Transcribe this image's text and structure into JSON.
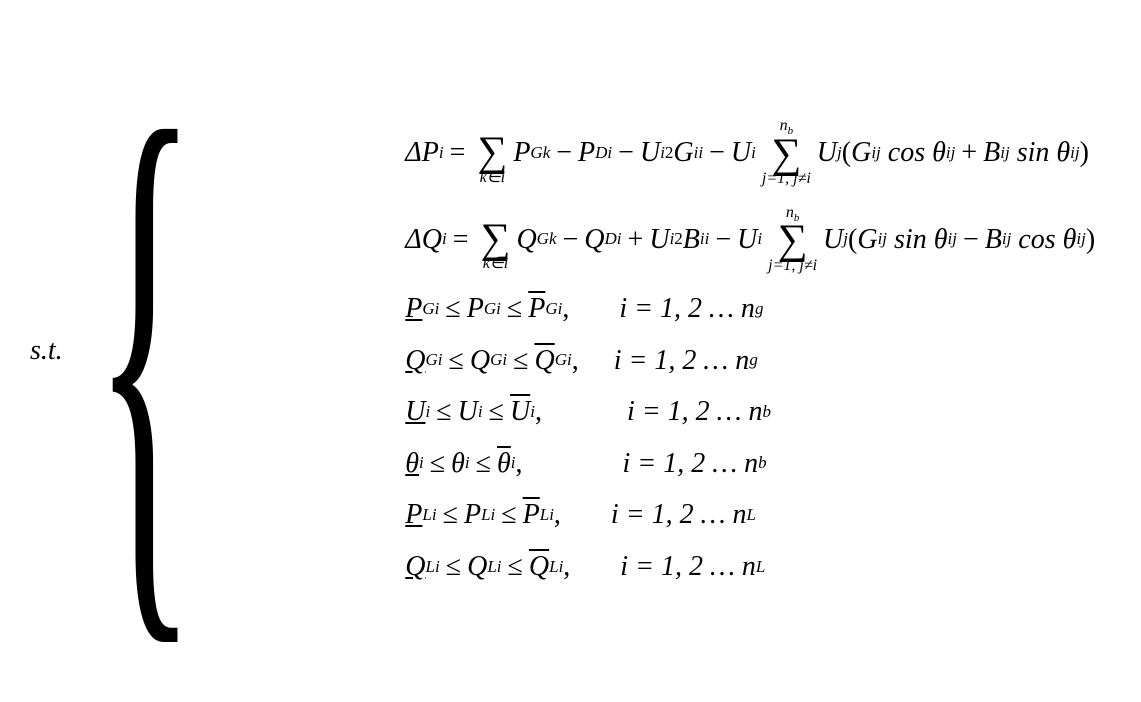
{
  "label": "s.t.",
  "eq1": {
    "lhs_delta": "Δ",
    "lhs_var": "P",
    "lhs_sub": "i",
    "sum1_bottom": "k∈i",
    "term1_var": "P",
    "term1_sub": "Gk",
    "term2_var": "P",
    "term2_sub": "Di",
    "term3_var": "U",
    "term3_sub": "i",
    "term3_sup": "2",
    "term3_G": "G",
    "term3_Gsub": "ii",
    "term4_var": "U",
    "term4_sub": "i",
    "sum2_top": "n",
    "sum2_top_sub": "b",
    "sum2_bottom": "j=1, j≠i",
    "term5_var": "U",
    "term5_sub": "j",
    "paren_G": "G",
    "paren_Gsub": "ij",
    "cos": "cos",
    "theta": "θ",
    "theta_sub": "ij",
    "paren_B": "B",
    "paren_Bsub": "ij",
    "sin": "sin"
  },
  "eq2": {
    "lhs_delta": "Δ",
    "lhs_var": "Q",
    "lhs_sub": "i",
    "sum1_bottom": "k∈i",
    "term1_var": "Q",
    "term1_sub": "Gk",
    "term2_var": "Q",
    "term2_sub": "Di",
    "term3_var": "U",
    "term3_sub": "i",
    "term3_sup": "2",
    "term3_B": "B",
    "term3_Bsub": "ii",
    "term4_var": "U",
    "term4_sub": "i",
    "sum2_top": "n",
    "sum2_top_sub": "b",
    "sum2_bottom": "j=1, j≠i",
    "term5_var": "U",
    "term5_sub": "j",
    "paren_G": "G",
    "paren_Gsub": "ij",
    "sin": "sin",
    "theta": "θ",
    "theta_sub": "ij",
    "paren_B": "B",
    "paren_Bsub": "ij",
    "cos": "cos"
  },
  "c1": {
    "var": "P",
    "sub": "Gi",
    "rhs": "i = 1, 2 … n",
    "rhs_sub": "g"
  },
  "c2": {
    "var": "Q",
    "sub": "Gi",
    "rhs": "i = 1, 2 … n",
    "rhs_sub": "g"
  },
  "c3": {
    "var": "U",
    "sub": "i",
    "rhs": "i = 1, 2 … n",
    "rhs_sub": "b"
  },
  "c4": {
    "var": "θ",
    "sub": "i",
    "rhs": "i = 1, 2 … n",
    "rhs_sub": "b"
  },
  "c5": {
    "var": "P",
    "sub": "Li",
    "rhs": "i = 1, 2 … n",
    "rhs_sub": "L"
  },
  "c6": {
    "var": "Q",
    "sub": "Li",
    "rhs": "i = 1, 2 … n",
    "rhs_sub": "L"
  },
  "symbols": {
    "sigma": "∑",
    "leq": "≤",
    "eq": "=",
    "minus": "−",
    "plus": "+",
    "lparen": "(",
    "rparen": ")",
    "comma": ","
  }
}
